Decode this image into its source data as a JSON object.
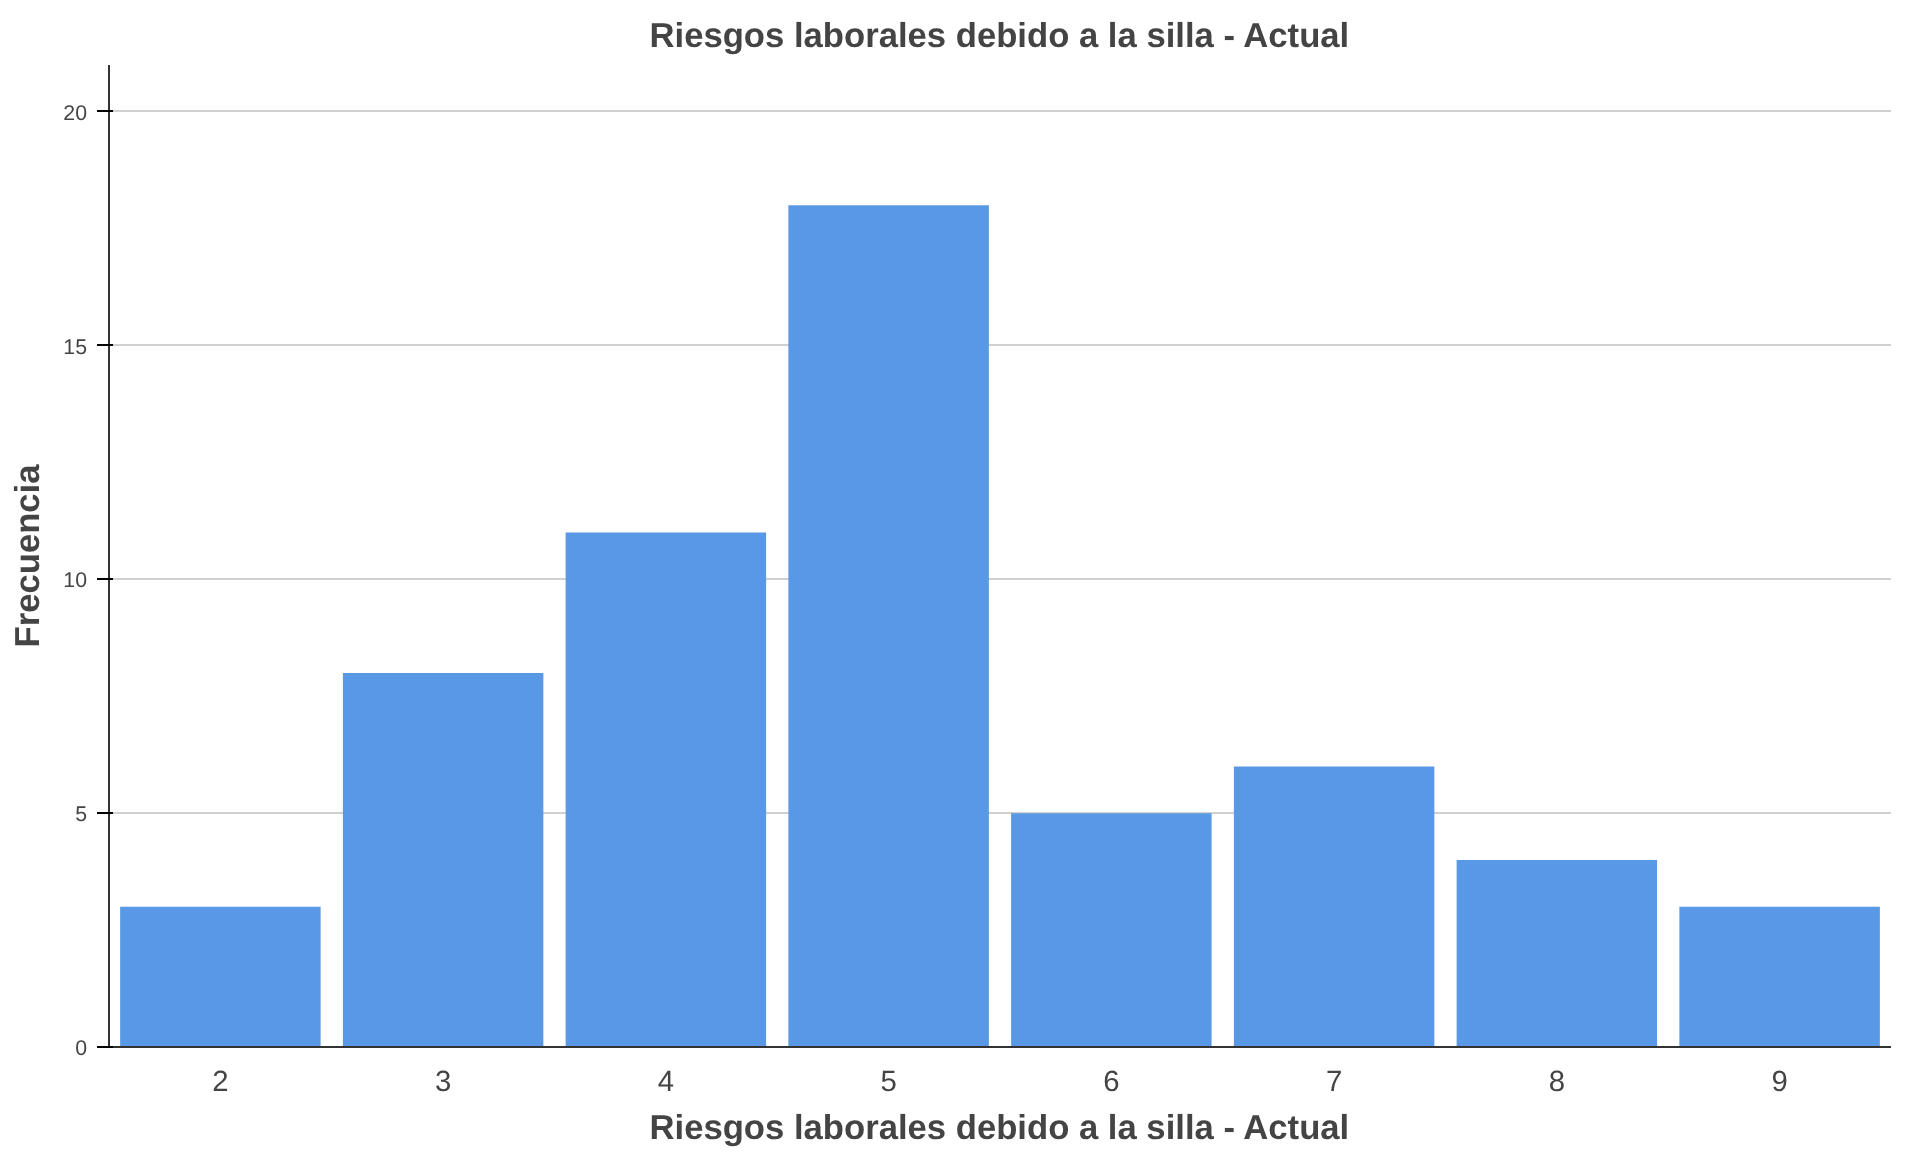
{
  "chart_data": {
    "type": "bar",
    "title": "Riesgos laborales debido a la silla - Actual",
    "xlabel": "Riesgos laborales debido a la silla - Actual",
    "ylabel": "Frecuencia",
    "categories": [
      "2",
      "3",
      "4",
      "5",
      "6",
      "7",
      "8",
      "9"
    ],
    "values": [
      3,
      8,
      11,
      18,
      5,
      6,
      4,
      3
    ],
    "color": "#5898e4",
    "ylim": [
      0,
      21
    ],
    "yticks": [
      0,
      5,
      10,
      15,
      20
    ],
    "grid": "y"
  }
}
